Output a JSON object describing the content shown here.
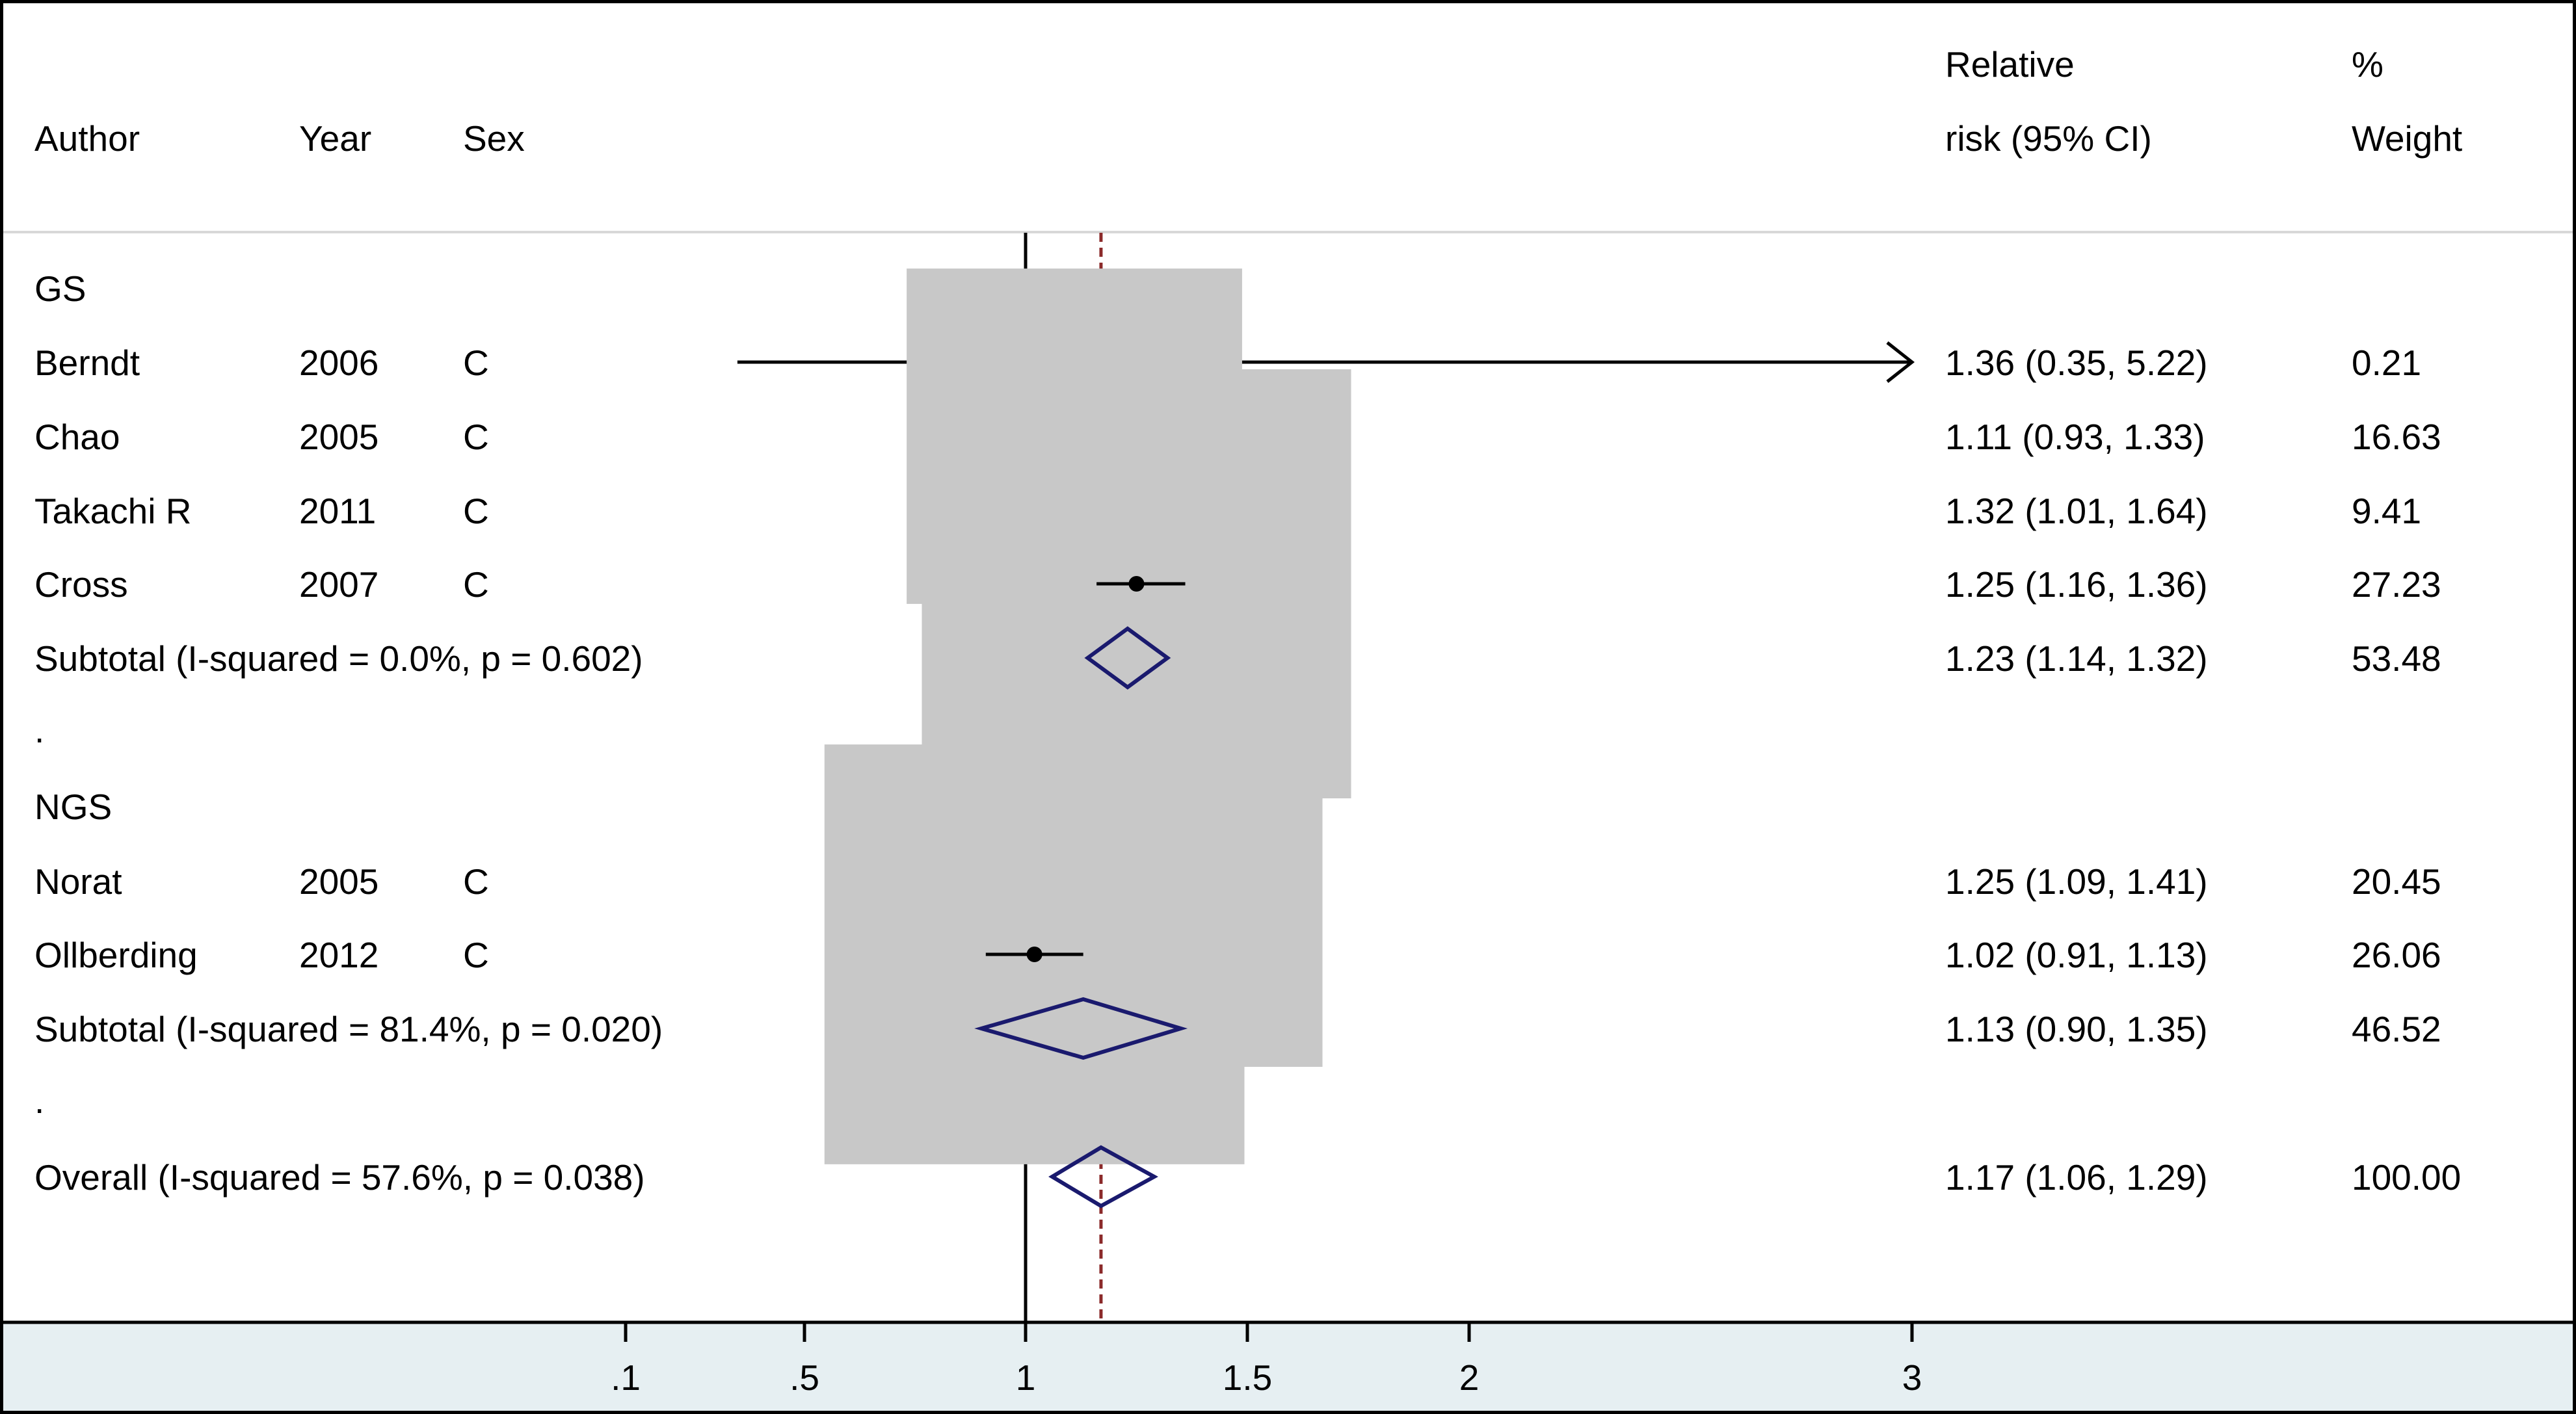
{
  "chart_data": {
    "type": "forest",
    "headers": {
      "author": "Author",
      "year": "Year",
      "sex": "Sex",
      "rr_line1": "Relative",
      "rr_line2": "risk (95% CI)",
      "weight_line1": "%",
      "weight_line2": "Weight"
    },
    "rows": [
      {
        "kind": "group",
        "label": "GS"
      },
      {
        "kind": "study",
        "author": "Berndt",
        "year": "2006",
        "sex": "C",
        "rr": 1.36,
        "lo": 0.35,
        "hi": 5.22,
        "ci_text": "1.36 (0.35, 5.22)",
        "weight": "0.21",
        "clipped_high": true
      },
      {
        "kind": "study",
        "author": "Chao",
        "year": "2005",
        "sex": "C",
        "rr": 1.11,
        "lo": 0.93,
        "hi": 1.33,
        "ci_text": "1.11 (0.93, 1.33)",
        "weight": "16.63"
      },
      {
        "kind": "study",
        "author": "Takachi R",
        "year": "2011",
        "sex": "C",
        "rr": 1.32,
        "lo": 1.01,
        "hi": 1.64,
        "ci_text": "1.32 (1.01, 1.64)",
        "weight": "9.41"
      },
      {
        "kind": "study",
        "author": "Cross",
        "year": "2007",
        "sex": "C",
        "rr": 1.25,
        "lo": 1.16,
        "hi": 1.36,
        "ci_text": "1.25 (1.16, 1.36)",
        "weight": "27.23"
      },
      {
        "kind": "subtotal",
        "label": "Subtotal  (I-squared = 0.0%, p = 0.602)",
        "rr": 1.23,
        "lo": 1.14,
        "hi": 1.32,
        "ci_text": "1.23 (1.14, 1.32)",
        "weight": "53.48"
      },
      {
        "kind": "dot",
        "label": "."
      },
      {
        "kind": "group",
        "label": "NGS"
      },
      {
        "kind": "study",
        "author": "Norat",
        "year": "2005",
        "sex": "C",
        "rr": 1.25,
        "lo": 1.09,
        "hi": 1.41,
        "ci_text": "1.25 (1.09, 1.41)",
        "weight": "20.45"
      },
      {
        "kind": "study",
        "author": "Ollberding",
        "year": "2012",
        "sex": "C",
        "rr": 1.02,
        "lo": 0.91,
        "hi": 1.13,
        "ci_text": "1.02 (0.91, 1.13)",
        "weight": "26.06"
      },
      {
        "kind": "subtotal",
        "label": "Subtotal  (I-squared = 81.4%, p = 0.020)",
        "rr": 1.13,
        "lo": 0.9,
        "hi": 1.35,
        "ci_text": "1.13 (0.90, 1.35)",
        "weight": "46.52"
      },
      {
        "kind": "dot",
        "label": "."
      },
      {
        "kind": "overall",
        "label": "Overall  (I-squared = 57.6%, p = 0.038)",
        "rr": 1.17,
        "lo": 1.06,
        "hi": 1.29,
        "ci_text": "1.17 (1.06, 1.29)",
        "weight": "100.00"
      }
    ],
    "x_axis": {
      "ticks": [
        {
          "value": 0.1,
          "label": ".1"
        },
        {
          "value": 0.5,
          "label": ".5"
        },
        {
          "value": 1,
          "label": "1"
        },
        {
          "value": 1.5,
          "label": "1.5"
        },
        {
          "value": 2,
          "label": "2"
        },
        {
          "value": 3,
          "label": "3"
        }
      ],
      "null_line": 1,
      "overall_line": 1.17
    },
    "colors": {
      "ci_line": "#000000",
      "point": "#000000",
      "weight_box": "#c8c8c8",
      "diamond": "#1a1a6e",
      "null_line": "#000000",
      "overall_line": "#8b2a2a",
      "axis_band": "#e6eff2",
      "frame": "#000000",
      "header_rule": "#d8d8d8"
    }
  }
}
